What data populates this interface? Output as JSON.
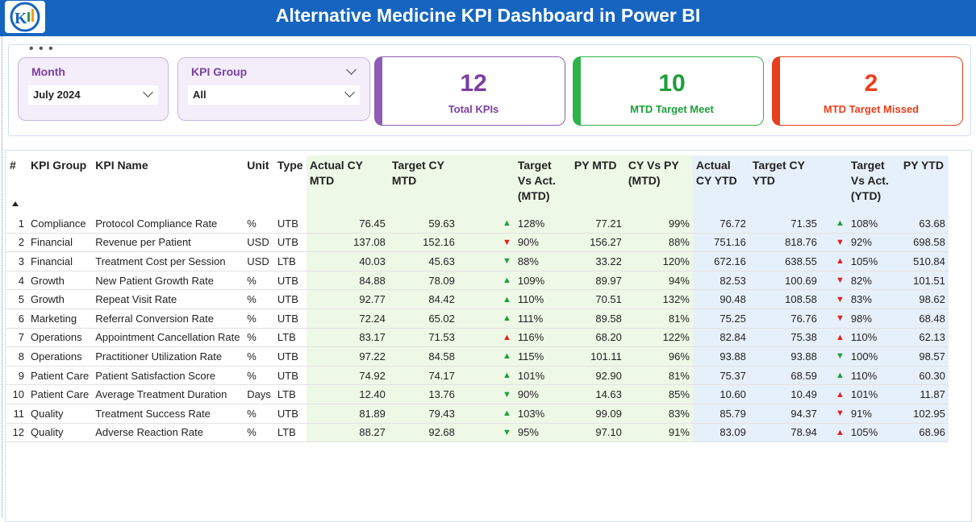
{
  "header": {
    "title": "Alternative Medicine KPI Dashboard in Power BI"
  },
  "slicers": [
    {
      "label": "Month",
      "value": "July 2024"
    },
    {
      "label": "KPI Group",
      "value": "All"
    }
  ],
  "cards": [
    {
      "value": 12,
      "label": "Total KPIs",
      "color": "#7b3fa0",
      "border": "#8e5bb5",
      "left": 0
    },
    {
      "value": 10,
      "label": "MTD Target Meet",
      "color": "#1f9e3a",
      "border": "#2db34a"
    },
    {
      "value": 2,
      "label": "MTD Target Missed",
      "color": "#e8401c",
      "border": "#e8401c"
    }
  ],
  "table": {
    "headers": [
      "#",
      "KPI Group",
      "KPI Name",
      "Unit",
      "Type",
      "Actual CY MTD",
      "Target CY MTD",
      "Target Vs Act. (MTD)",
      "PY MTD",
      "CY Vs PY (MTD)",
      "Actual CY YTD",
      "Target CY YTD",
      "Target Vs Act. (YTD)",
      "PY YTD"
    ],
    "rows": [
      [
        "1",
        "Compliance",
        "Protocol Compliance Rate",
        "%",
        "UTB",
        "76.45",
        "59.63",
        "▲",
        "128%",
        "77.21",
        "99%",
        "76.72",
        "71.35",
        "▲",
        "108%",
        "63.68"
      ],
      [
        "2",
        "Financial",
        "Revenue per Patient",
        "USD",
        "UTB",
        "137.08",
        "152.16",
        "▼",
        "90%",
        "156.27",
        "88%",
        "751.16",
        "818.76",
        "▼",
        "92%",
        "698.58"
      ],
      [
        "3",
        "Financial",
        "Treatment Cost per Session",
        "USD",
        "LTB",
        "40.03",
        "45.63",
        "▼",
        "88%",
        "33.22",
        "120%",
        "672.16",
        "638.55",
        "▲",
        "105%",
        "510.84"
      ],
      [
        "4",
        "Growth",
        "New Patient Growth Rate",
        "%",
        "UTB",
        "84.88",
        "78.09",
        "▲",
        "109%",
        "89.97",
        "94%",
        "82.53",
        "100.69",
        "▼",
        "82%",
        "101.51"
      ],
      [
        "5",
        "Growth",
        "Repeat Visit Rate",
        "%",
        "UTB",
        "92.77",
        "84.42",
        "▲",
        "110%",
        "70.51",
        "132%",
        "90.48",
        "108.58",
        "▼",
        "83%",
        "98.62"
      ],
      [
        "6",
        "Marketing",
        "Referral Conversion Rate",
        "%",
        "UTB",
        "72.24",
        "65.02",
        "▲",
        "111%",
        "89.58",
        "81%",
        "75.25",
        "76.76",
        "▼",
        "98%",
        "68.48"
      ],
      [
        "7",
        "Operations",
        "Appointment Cancellation Rate",
        "%",
        "LTB",
        "83.17",
        "71.53",
        "▲",
        "116%",
        "68.20",
        "122%",
        "82.84",
        "75.38",
        "▲",
        "110%",
        "62.13"
      ],
      [
        "8",
        "Operations",
        "Practitioner Utilization Rate",
        "%",
        "UTB",
        "97.22",
        "84.58",
        "▲",
        "115%",
        "101.11",
        "96%",
        "93.88",
        "93.88",
        "▼",
        "100%",
        "98.57"
      ],
      [
        "9",
        "Patient Care",
        "Patient Satisfaction Score",
        "%",
        "UTB",
        "74.92",
        "74.17",
        "▲",
        "101%",
        "92.90",
        "81%",
        "75.37",
        "68.59",
        "▲",
        "110%",
        "60.30"
      ],
      [
        "10",
        "Patient Care",
        "Average Treatment Duration",
        "Days",
        "LTB",
        "12.40",
        "13.76",
        "▼",
        "90%",
        "14.63",
        "85%",
        "10.60",
        "10.49",
        "▲",
        "101%",
        "11.87"
      ],
      [
        "11",
        "Quality",
        "Treatment Success Rate",
        "%",
        "UTB",
        "81.89",
        "79.43",
        "▲",
        "103%",
        "99.09",
        "83%",
        "85.79",
        "94.37",
        "▼",
        "91%",
        "102.95"
      ],
      [
        "12",
        "Quality",
        "Adverse Reaction Rate",
        "%",
        "LTB",
        "88.27",
        "92.68",
        "▼",
        "95%",
        "97.10",
        "91%",
        "83.09",
        "78.94",
        "▲",
        "105%",
        "68.96"
      ]
    ],
    "icon_colors": [
      [
        "#1e9e3a",
        "#1e9e3a"
      ],
      [
        "#e02020",
        "#e02020"
      ],
      [
        "#1e9e3a",
        "#e02020"
      ],
      [
        "#1e9e3a",
        "#e02020"
      ],
      [
        "#1e9e3a",
        "#e02020"
      ],
      [
        "#1e9e3a",
        "#e02020"
      ],
      [
        "#e02020",
        "#e02020"
      ],
      [
        "#1e9e3a",
        "#1e9e3a"
      ],
      [
        "#1e9e3a",
        "#1e9e3a"
      ],
      [
        "#1e9e3a",
        "#e02020"
      ],
      [
        "#1e9e3a",
        "#e02020"
      ],
      [
        "#1e9e3a",
        "#e02020"
      ]
    ]
  }
}
